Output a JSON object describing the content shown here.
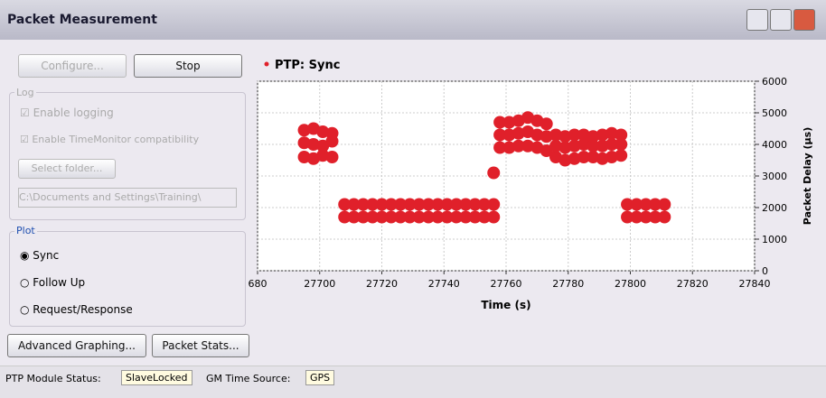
{
  "window": {
    "title": "Packet Measurement"
  },
  "buttons": {
    "configure": "Configure...",
    "stop": "Stop",
    "advanced": "Advanced Graphing...",
    "stats": "Packet Stats..."
  },
  "log": {
    "title": "Log",
    "enable_logging": "Enable logging",
    "enable_tm": "Enable TimeMonitor compatibility",
    "select_folder": "Select folder...",
    "path": "C:\\Documents and Settings\\Training\\"
  },
  "plot": {
    "title": "Plot",
    "options": [
      "Sync",
      "Follow Up",
      "Request/Response"
    ]
  },
  "status": {
    "module_label": "PTP Module Status:",
    "module_value": "SlaveLocked",
    "gm_label": "GM Time Source:",
    "gm_value": "GPS"
  },
  "chart_data": {
    "type": "scatter",
    "x_label": "Time (s)",
    "y_label": "Packet Delay (µs)",
    "grid": true,
    "y_axis_side": "right",
    "xlim": [
      27680,
      27840
    ],
    "xticks": [
      {
        "value": 27680,
        "label": "680"
      },
      27700,
      27720,
      27740,
      27760,
      27780,
      27800,
      27820,
      27840
    ],
    "ylim": [
      0,
      6000
    ],
    "yticks": [
      0,
      1000,
      2000,
      3000,
      4000,
      5000,
      6000
    ],
    "series": [
      {
        "name": "PTP: Sync",
        "color": "#e0202a",
        "x": [
          27695,
          27695,
          27695,
          27698,
          27698,
          27698,
          27701,
          27701,
          27701,
          27704,
          27704,
          27704,
          27708,
          27708,
          27711,
          27711,
          27714,
          27714,
          27717,
          27717,
          27720,
          27720,
          27723,
          27723,
          27726,
          27726,
          27729,
          27729,
          27732,
          27732,
          27735,
          27735,
          27738,
          27738,
          27741,
          27741,
          27744,
          27744,
          27747,
          27747,
          27750,
          27750,
          27753,
          27753,
          27756,
          27756,
          27756,
          27758,
          27758,
          27758,
          27761,
          27761,
          27761,
          27764,
          27764,
          27764,
          27767,
          27767,
          27767,
          27770,
          27770,
          27770,
          27773,
          27773,
          27773,
          27776,
          27776,
          27776,
          27779,
          27779,
          27779,
          27782,
          27782,
          27782,
          27785,
          27785,
          27785,
          27788,
          27788,
          27788,
          27791,
          27791,
          27791,
          27794,
          27794,
          27794,
          27797,
          27797,
          27797,
          27799,
          27799,
          27802,
          27802,
          27805,
          27805,
          27808,
          27808,
          27811,
          27811
        ],
        "values": [
          3600,
          4050,
          4450,
          3550,
          4000,
          4500,
          3650,
          3950,
          4400,
          3600,
          4100,
          4350,
          1700,
          2100,
          1700,
          2100,
          1700,
          2100,
          1700,
          2100,
          1700,
          2100,
          1700,
          2100,
          1700,
          2100,
          1700,
          2100,
          1700,
          2100,
          1700,
          2100,
          1700,
          2100,
          1700,
          2100,
          1700,
          2100,
          1700,
          2100,
          1700,
          2100,
          1700,
          2100,
          1700,
          2100,
          3100,
          3900,
          4300,
          4700,
          3900,
          4300,
          4700,
          3950,
          4350,
          4750,
          3950,
          4400,
          4850,
          3900,
          4300,
          4750,
          3800,
          4250,
          4650,
          3600,
          3950,
          4300,
          3500,
          3900,
          4250,
          3550,
          3950,
          4300,
          3600,
          4000,
          4300,
          3600,
          3950,
          4250,
          3550,
          3950,
          4300,
          3600,
          4000,
          4350,
          3650,
          4000,
          4300,
          1700,
          2100,
          1700,
          2100,
          1700,
          2100,
          1700,
          2100,
          1700,
          2100
        ]
      }
    ]
  }
}
